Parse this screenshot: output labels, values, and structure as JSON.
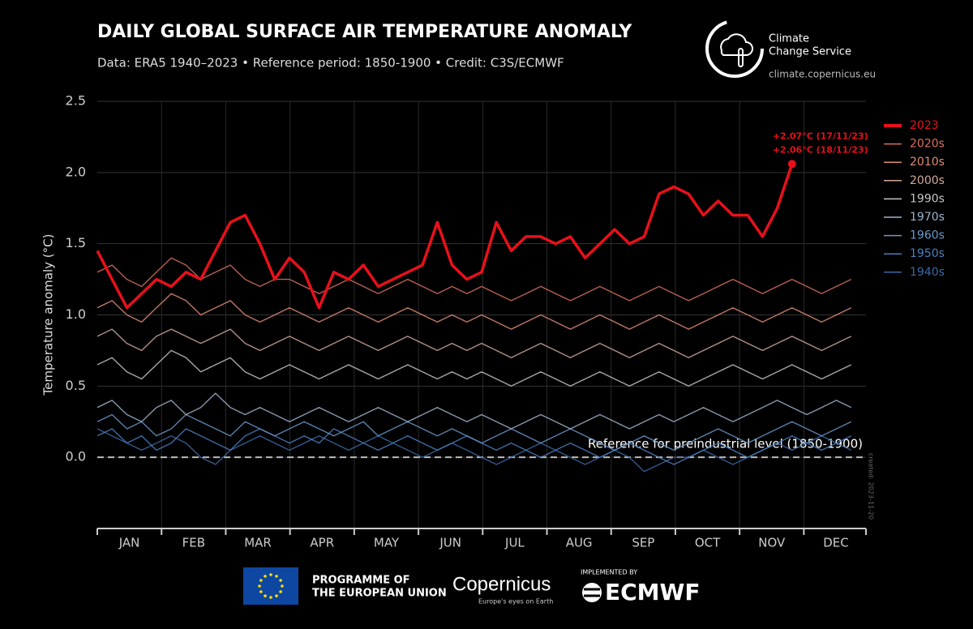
{
  "chart_data": {
    "type": "line",
    "title": "DAILY GLOBAL SURFACE AIR TEMPERATURE ANOMALY",
    "subtitle": "Data: ERA5 1940–2023 • Reference period: 1850-1900 • Credit: C3S/ECMWF",
    "y_label": "Temperature anomaly (°C)",
    "months": [
      "JAN",
      "FEB",
      "MAR",
      "APR",
      "MAY",
      "JUN",
      "JUL",
      "AUG",
      "SEP",
      "OCT",
      "NOV",
      "DEC"
    ],
    "x": [
      1,
      8,
      15,
      22,
      29,
      36,
      43,
      50,
      57,
      64,
      71,
      78,
      85,
      92,
      99,
      106,
      113,
      120,
      127,
      134,
      141,
      148,
      155,
      162,
      169,
      176,
      183,
      190,
      197,
      204,
      211,
      218,
      225,
      232,
      239,
      246,
      253,
      260,
      267,
      274,
      281,
      288,
      295,
      302,
      309,
      316,
      323,
      330,
      337,
      344,
      351,
      358
    ],
    "xlim": [
      1,
      365
    ],
    "ylim": [
      -0.5,
      2.5
    ],
    "yticks": [
      {
        "value": 0,
        "label": "0.0"
      },
      0.5,
      {
        "value": 1,
        "label": "1.0"
      },
      1.5,
      {
        "value": 2,
        "label": "2.0"
      },
      2.5
    ],
    "grid": true,
    "reference_line": {
      "value": 0,
      "label": "Reference for preindustrial level (1850-1900)"
    },
    "annotations": [
      "+2.07°C (17/11/23)",
      "+2.06°C (18/11/23)"
    ],
    "created_note": "created: 2023-11-20",
    "series": [
      {
        "name": "2023",
        "color": "#e8101a",
        "values": [
          1.45,
          1.25,
          1.05,
          1.15,
          1.25,
          1.2,
          1.3,
          1.25,
          1.45,
          1.65,
          1.7,
          1.5,
          1.25,
          1.4,
          1.3,
          1.05,
          1.3,
          1.25,
          1.35,
          1.2,
          1.25,
          1.3,
          1.35,
          1.65,
          1.35,
          1.25,
          1.3,
          1.65,
          1.45,
          1.55,
          1.55,
          1.5,
          1.55,
          1.4,
          1.5,
          1.6,
          1.5,
          1.55,
          1.85,
          1.9,
          1.85,
          1.7,
          1.8,
          1.7,
          1.7,
          1.55,
          1.75,
          2.06,
          null,
          null,
          null,
          null
        ]
      },
      {
        "name": "2020s",
        "color": "#d9705f",
        "values": [
          1.3,
          1.35,
          1.25,
          1.2,
          1.3,
          1.4,
          1.35,
          1.25,
          1.3,
          1.35,
          1.25,
          1.2,
          1.25,
          1.25,
          1.2,
          1.15,
          1.2,
          1.25,
          1.2,
          1.15,
          1.2,
          1.25,
          1.2,
          1.15,
          1.2,
          1.15,
          1.2,
          1.15,
          1.1,
          1.15,
          1.2,
          1.15,
          1.1,
          1.15,
          1.2,
          1.15,
          1.1,
          1.15,
          1.2,
          1.15,
          1.1,
          1.15,
          1.2,
          1.25,
          1.2,
          1.15,
          1.2,
          1.25,
          1.2,
          1.15,
          1.2,
          1.25
        ]
      },
      {
        "name": "2010s",
        "color": "#e08d78",
        "values": [
          1.05,
          1.1,
          1.0,
          0.95,
          1.05,
          1.15,
          1.1,
          1.0,
          1.05,
          1.1,
          1.0,
          0.95,
          1.0,
          1.05,
          1.0,
          0.95,
          1.0,
          1.05,
          1.0,
          0.95,
          1.0,
          1.05,
          1.0,
          0.95,
          1.0,
          0.95,
          1.0,
          0.95,
          0.9,
          0.95,
          1.0,
          0.95,
          0.9,
          0.95,
          1.0,
          0.95,
          0.9,
          0.95,
          1.0,
          0.95,
          0.9,
          0.95,
          1.0,
          1.05,
          1.0,
          0.95,
          1.0,
          1.05,
          1.0,
          0.95,
          1.0,
          1.05
        ]
      },
      {
        "name": "2000s",
        "color": "#d2aa9a",
        "values": [
          0.85,
          0.9,
          0.8,
          0.75,
          0.85,
          0.9,
          0.85,
          0.8,
          0.85,
          0.9,
          0.8,
          0.75,
          0.8,
          0.85,
          0.8,
          0.75,
          0.8,
          0.85,
          0.8,
          0.75,
          0.8,
          0.85,
          0.8,
          0.75,
          0.8,
          0.75,
          0.8,
          0.75,
          0.7,
          0.75,
          0.8,
          0.75,
          0.7,
          0.75,
          0.8,
          0.75,
          0.7,
          0.75,
          0.8,
          0.75,
          0.7,
          0.75,
          0.8,
          0.85,
          0.8,
          0.75,
          0.8,
          0.85,
          0.8,
          0.75,
          0.8,
          0.85
        ]
      },
      {
        "name": "1990s",
        "color": "#c4c4c4",
        "values": [
          0.65,
          0.7,
          0.6,
          0.55,
          0.65,
          0.75,
          0.7,
          0.6,
          0.65,
          0.7,
          0.6,
          0.55,
          0.6,
          0.65,
          0.6,
          0.55,
          0.6,
          0.65,
          0.6,
          0.55,
          0.6,
          0.65,
          0.6,
          0.55,
          0.6,
          0.55,
          0.6,
          0.55,
          0.5,
          0.55,
          0.6,
          0.55,
          0.5,
          0.55,
          0.6,
          0.55,
          0.5,
          0.55,
          0.6,
          0.55,
          0.5,
          0.55,
          0.6,
          0.65,
          0.6,
          0.55,
          0.6,
          0.65,
          0.6,
          0.55,
          0.6,
          0.65
        ]
      },
      {
        "name": "1970s",
        "color": "#9db4cc",
        "values": [
          0.35,
          0.4,
          0.3,
          0.25,
          0.35,
          0.4,
          0.3,
          0.35,
          0.45,
          0.35,
          0.3,
          0.35,
          0.3,
          0.25,
          0.3,
          0.35,
          0.3,
          0.25,
          0.3,
          0.35,
          0.3,
          0.25,
          0.3,
          0.35,
          0.3,
          0.25,
          0.3,
          0.25,
          0.2,
          0.25,
          0.3,
          0.25,
          0.2,
          0.25,
          0.3,
          0.25,
          0.2,
          0.25,
          0.3,
          0.25,
          0.3,
          0.35,
          0.3,
          0.25,
          0.3,
          0.35,
          0.4,
          0.35,
          0.3,
          0.35,
          0.4,
          0.35
        ]
      },
      {
        "name": "1960s",
        "color": "#6a98c8",
        "values": [
          0.25,
          0.3,
          0.2,
          0.25,
          0.15,
          0.2,
          0.3,
          0.25,
          0.2,
          0.15,
          0.25,
          0.2,
          0.15,
          0.2,
          0.25,
          0.2,
          0.15,
          0.2,
          0.25,
          0.15,
          0.2,
          0.25,
          0.2,
          0.15,
          0.2,
          0.15,
          0.1,
          0.15,
          0.2,
          0.15,
          0.1,
          0.15,
          0.2,
          0.15,
          0.1,
          0.05,
          0.1,
          0.15,
          0.1,
          0.05,
          0.1,
          0.15,
          0.2,
          0.15,
          0.1,
          0.15,
          0.2,
          0.25,
          0.2,
          0.15,
          0.2,
          0.25
        ]
      },
      {
        "name": "1950s",
        "color": "#4a7fbf",
        "values": [
          0.15,
          0.2,
          0.1,
          0.15,
          0.05,
          0.1,
          0.2,
          0.15,
          0.1,
          0.05,
          0.15,
          0.2,
          0.15,
          0.1,
          0.15,
          0.1,
          0.2,
          0.15,
          0.1,
          0.05,
          0.1,
          0.15,
          0.1,
          0.05,
          0.1,
          0.15,
          0.1,
          0.05,
          0.1,
          0.05,
          0.0,
          0.05,
          0.1,
          0.05,
          0.0,
          0.05,
          0.1,
          0.05,
          0.0,
          -0.05,
          0.0,
          0.05,
          0.1,
          0.05,
          0.0,
          0.05,
          0.1,
          0.15,
          0.1,
          0.05,
          0.1,
          0.15
        ]
      },
      {
        "name": "1940s",
        "color": "#3a68a6",
        "values": [
          0.2,
          0.15,
          0.1,
          0.05,
          0.1,
          0.15,
          0.1,
          0.0,
          -0.05,
          0.05,
          0.1,
          0.15,
          0.1,
          0.05,
          0.1,
          0.15,
          0.1,
          0.05,
          0.1,
          0.15,
          0.1,
          0.05,
          0.0,
          0.05,
          0.1,
          0.05,
          0.0,
          -0.05,
          0.0,
          0.05,
          0.1,
          0.05,
          0.0,
          -0.05,
          0.0,
          0.05,
          0.0,
          -0.1,
          -0.05,
          0.0,
          0.0,
          0.05,
          0.0,
          -0.05,
          0.0,
          0.05,
          0.1,
          0.05,
          0.1,
          0.15,
          0.1,
          0.05
        ]
      }
    ]
  },
  "logo": {
    "line1": "Climate",
    "line2": "Change Service",
    "url": "climate.copernicus.eu"
  },
  "footer": {
    "eu_line1": "PROGRAMME OF",
    "eu_line2": "THE EUROPEAN UNION",
    "copernicus": "Copernicus",
    "copernicus_tagline": "Europe's eyes on Earth",
    "implemented_by": "IMPLEMENTED BY",
    "ecmwf": "ECMWF"
  }
}
